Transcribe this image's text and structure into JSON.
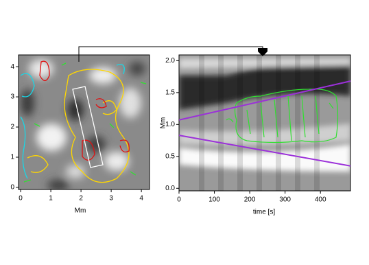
{
  "panels": [
    {
      "xlabel": "Mm",
      "xlim": [
        -0.07,
        4.27
      ],
      "ylim": [
        -0.07,
        4.39
      ],
      "xticks": [
        0,
        1,
        2,
        3,
        4
      ],
      "yticks": [
        0,
        1,
        2,
        3,
        4
      ]
    },
    {
      "xlabel": "time [s]",
      "ylabel": "Mm",
      "xlim": [
        0,
        485
      ],
      "ylim": [
        -0.04,
        2.09
      ],
      "xticks": [
        0,
        100,
        200,
        300,
        400
      ],
      "yticks": [
        {
          "value": 0,
          "label": "0.0"
        },
        0.5,
        {
          "value": 1,
          "label": "1.0"
        },
        1.5,
        {
          "value": 2,
          "label": "2.0"
        }
      ],
      "lines": [
        {
          "color": "#9b30d9",
          "x": [
            0,
            485
          ],
          "y": [
            1.07,
            1.68
          ]
        },
        {
          "color": "#9b30d9",
          "x": [
            0,
            485
          ],
          "y": [
            0.83,
            0.35
          ]
        }
      ]
    }
  ]
}
